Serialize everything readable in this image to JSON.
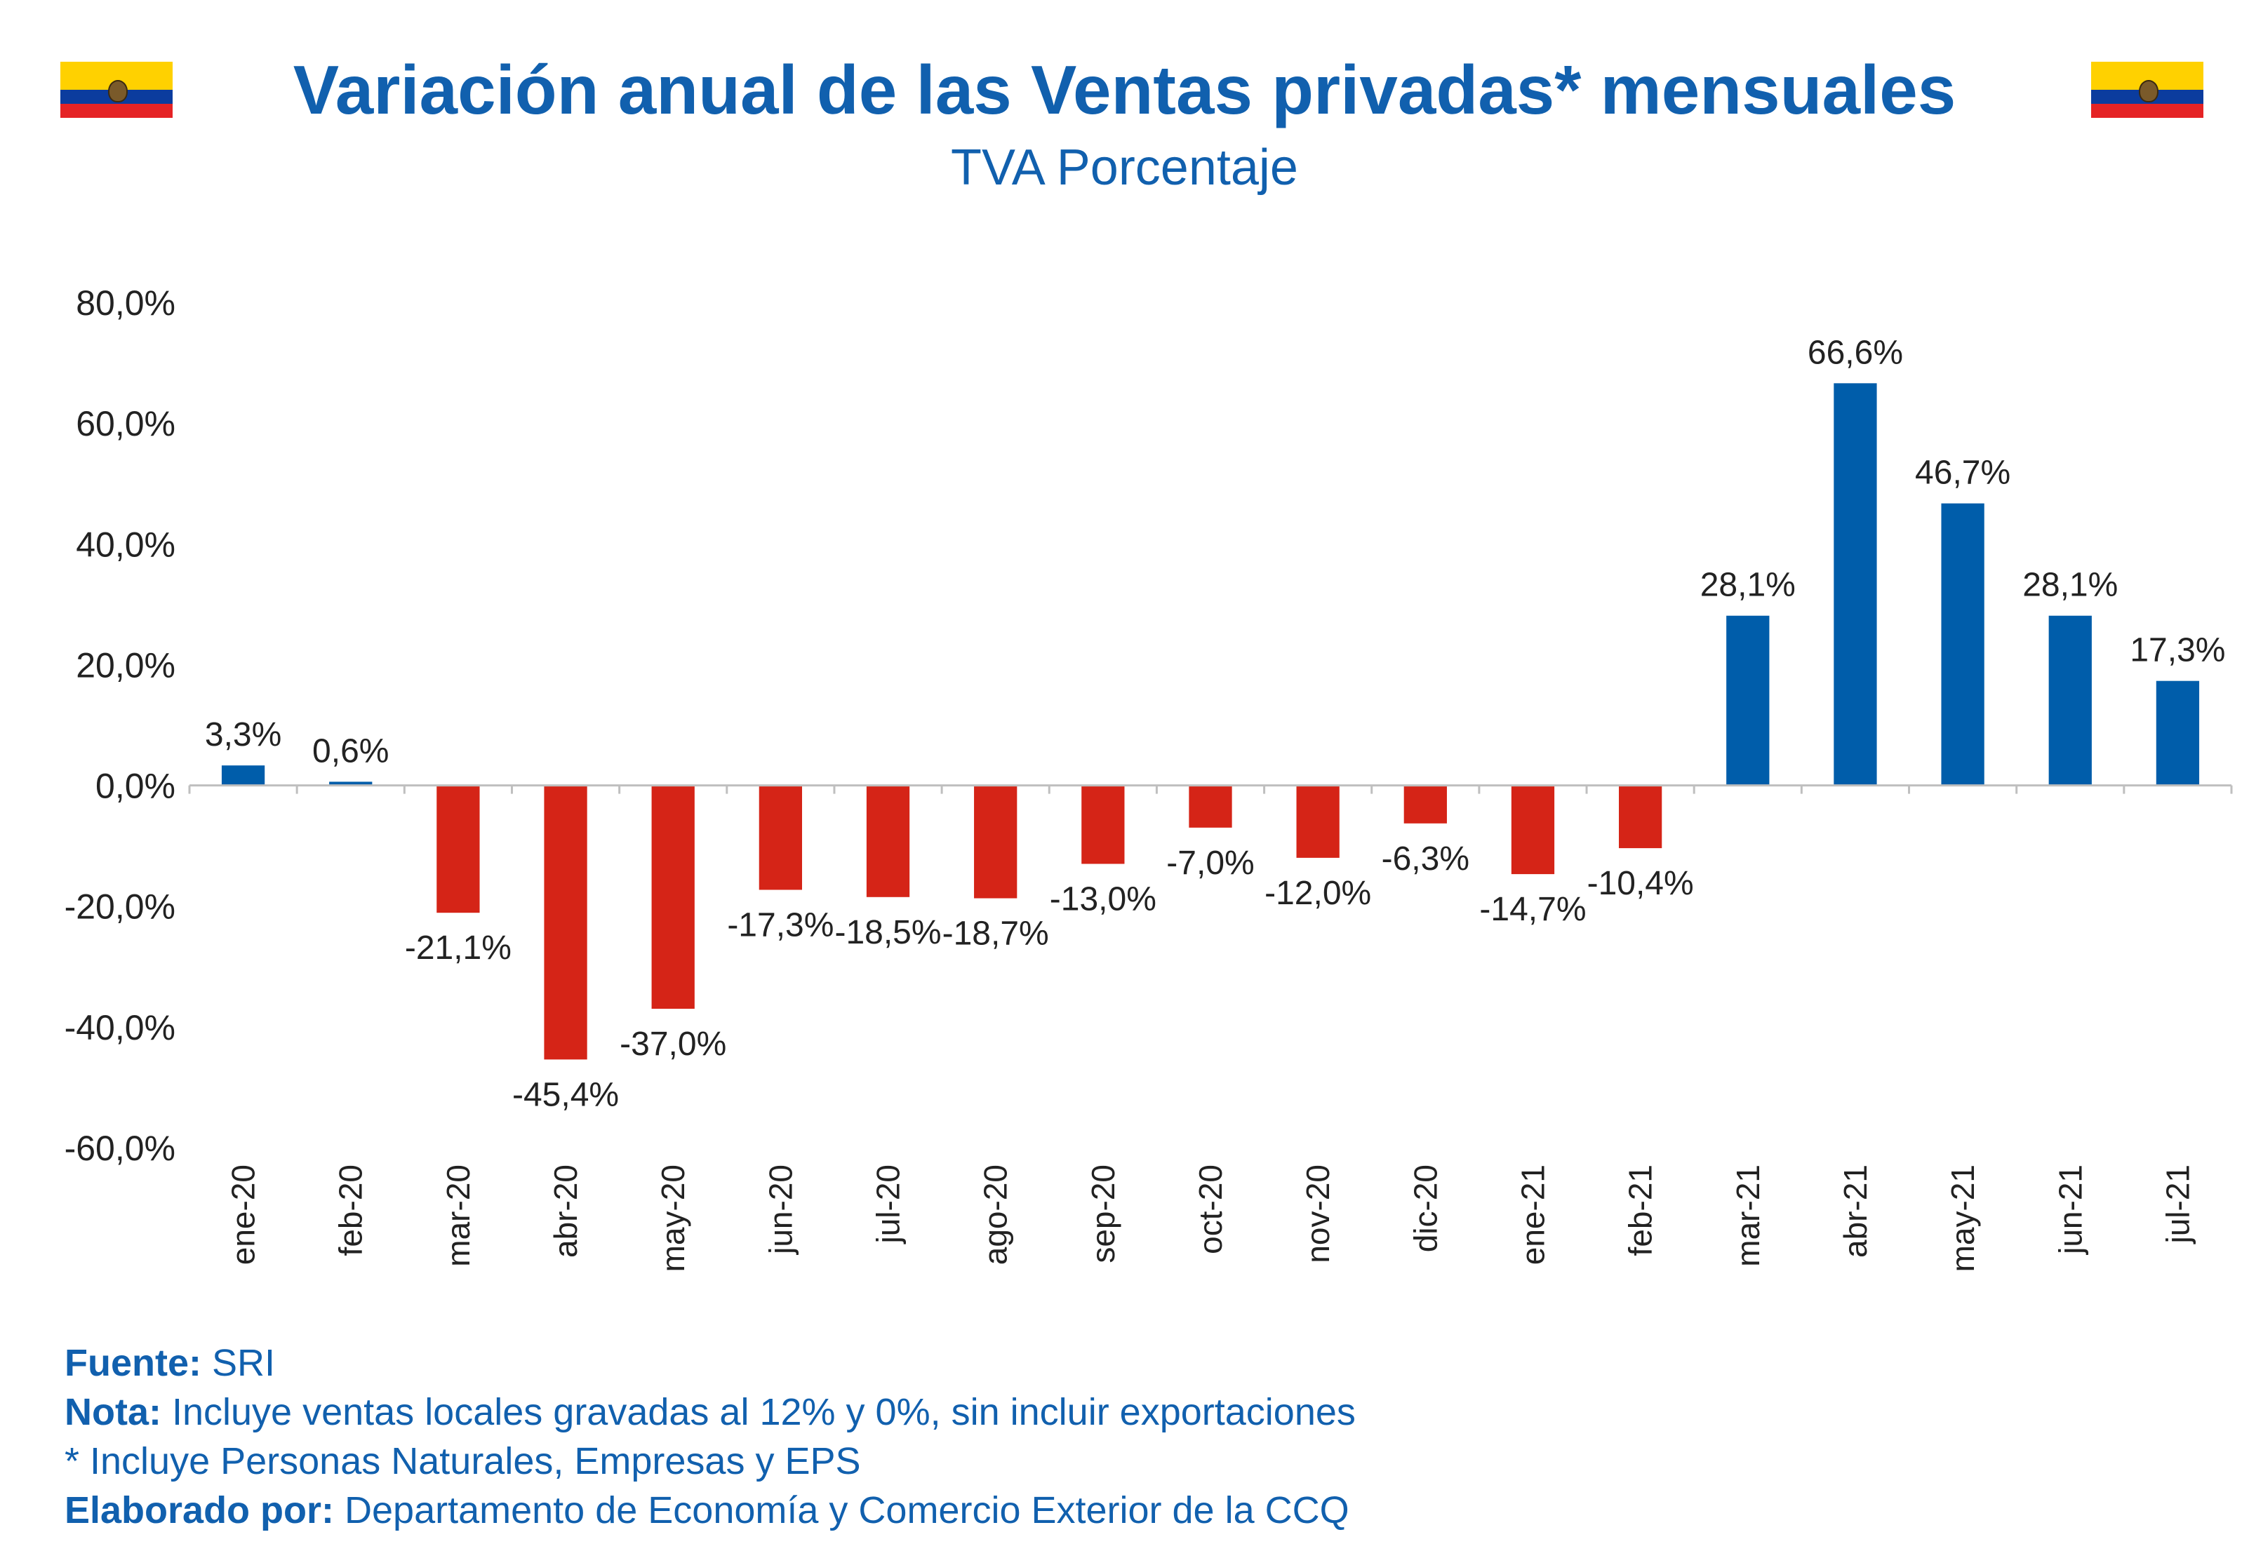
{
  "header": {
    "title": "Variación anual de las Ventas privadas*  mensuales",
    "subtitle": "TVA Porcentaje"
  },
  "colors": {
    "positive": "#005DAA",
    "negative": "#D52417",
    "title": "#1160AE"
  },
  "chart_data": {
    "type": "bar",
    "title": "Variación anual de las Ventas privadas*  mensuales",
    "subtitle": "TVA Porcentaje",
    "categories": [
      "ene-20",
      "feb-20",
      "mar-20",
      "abr-20",
      "may-20",
      "jun-20",
      "jul-20",
      "ago-20",
      "sep-20",
      "oct-20",
      "nov-20",
      "dic-20",
      "ene-21",
      "feb-21",
      "mar-21",
      "abr-21",
      "may-21",
      "jun-21",
      "jul-21"
    ],
    "values": [
      3.3,
      0.6,
      -21.1,
      -45.4,
      -37.0,
      -17.3,
      -18.5,
      -18.7,
      -13.0,
      -7.0,
      -12.0,
      -6.3,
      -14.7,
      -10.4,
      28.1,
      66.6,
      46.7,
      28.1,
      17.3
    ],
    "value_labels": [
      "3,3%",
      "0,6%",
      "-21,1%",
      "-45,4%",
      "-37,0%",
      "-17,3%",
      "-18,5%",
      "-18,7%",
      "-13,0%",
      "-7,0%",
      "-12,0%",
      "-6,3%",
      "-14,7%",
      "-10,4%",
      "28,1%",
      "66,6%",
      "46,7%",
      "28,1%",
      "17,3%"
    ],
    "ylim": [
      -60,
      80
    ],
    "yticks": [
      80,
      60,
      40,
      20,
      0,
      -20,
      -40,
      -60
    ],
    "ytick_labels": [
      "80,0%",
      "60,0%",
      "40,0%",
      "20,0%",
      "0,0%",
      "-20,0%",
      "-40,0%",
      "-60,0%"
    ],
    "legend": "none",
    "grid": false
  },
  "footer": {
    "source_label": "Fuente:",
    "source_value": " SRI",
    "note_label": "Nota:",
    "note_value": " Incluye ventas locales gravadas al 12% y 0%, sin incluir exportaciones",
    "asterisk_note": "* Incluye Personas Naturales, Empresas y EPS",
    "prepared_label": "Elaborado por:",
    "prepared_value": " Departamento de Economía y Comercio Exterior de la CCQ"
  }
}
